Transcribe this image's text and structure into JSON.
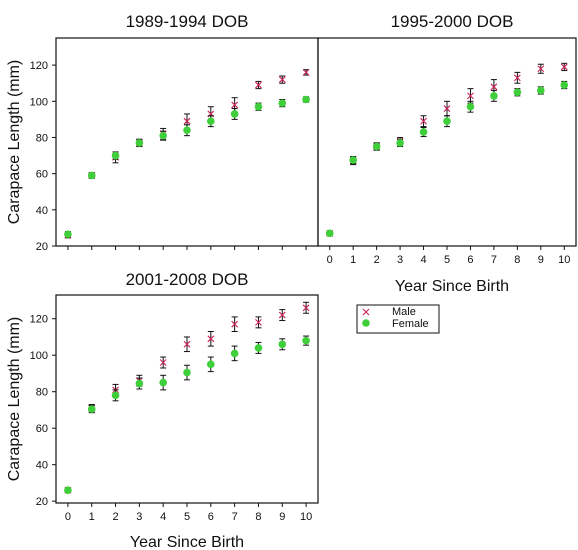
{
  "legend": {
    "male_label": "Male",
    "female_label": "Female",
    "male_marker": "x-marker",
    "female_marker": "circle-marker"
  },
  "colors": {
    "male": "#cc2a5a",
    "female": "#3fcf3a",
    "errorbar": "#111111",
    "axis": "#111111"
  },
  "chart_data": [
    {
      "type": "scatter",
      "title": "1989-1994 DOB",
      "xlabel": "",
      "ylabel": "Carapace Length (mm)",
      "xlim": [
        -0.5,
        10.5
      ],
      "ylim": [
        20,
        135
      ],
      "x_ticks": [
        0,
        1,
        2,
        3,
        4,
        5,
        6,
        7,
        8,
        9,
        10
      ],
      "x_tick_labels_shown": false,
      "y_ticks": [
        20,
        40,
        60,
        80,
        100,
        120
      ],
      "error_bars": true,
      "series": [
        {
          "name": "Male",
          "x": [
            0,
            1,
            2,
            3,
            4,
            5,
            6,
            7,
            8,
            9,
            10
          ],
          "y": [
            26,
            59,
            69,
            77,
            82,
            89,
            93,
            98,
            109,
            112,
            116
          ],
          "err": [
            1.5,
            1.5,
            3,
            2,
            3,
            4,
            4,
            4,
            2,
            2,
            1.5
          ]
        },
        {
          "name": "Female",
          "x": [
            0,
            1,
            2,
            3,
            4,
            5,
            6,
            7,
            8,
            9,
            10
          ],
          "y": [
            26.5,
            59,
            70,
            77,
            81,
            84,
            89,
            93,
            97,
            99,
            101
          ],
          "err": [
            1.5,
            1.5,
            2,
            2,
            2.5,
            3,
            3,
            3,
            2,
            2,
            1.5
          ]
        }
      ]
    },
    {
      "type": "scatter",
      "title": "1995-2000 DOB",
      "xlabel": "Year Since Birth",
      "ylabel": "",
      "xlim": [
        -0.5,
        10.5
      ],
      "ylim": [
        20,
        135
      ],
      "x_ticks": [
        0,
        1,
        2,
        3,
        4,
        5,
        6,
        7,
        8,
        9,
        10
      ],
      "x_tick_labels_shown": true,
      "y_ticks": [],
      "error_bars": true,
      "series": [
        {
          "name": "Male",
          "x": [
            0,
            1,
            2,
            3,
            4,
            5,
            6,
            7,
            8,
            9,
            10
          ],
          "y": [
            27,
            67,
            75,
            78,
            89,
            96,
            103,
            108,
            113,
            118,
            119
          ],
          "err": [
            1,
            2,
            2,
            2,
            3,
            4,
            4,
            4,
            3,
            2.5,
            2
          ]
        },
        {
          "name": "Female",
          "x": [
            0,
            1,
            2,
            3,
            4,
            5,
            6,
            7,
            8,
            9,
            10
          ],
          "y": [
            27,
            67.5,
            75,
            77,
            83,
            89,
            97,
            103,
            105,
            106,
            109
          ],
          "err": [
            1,
            2,
            2,
            2,
            2.5,
            3,
            3,
            3,
            2,
            2,
            2
          ]
        }
      ]
    },
    {
      "type": "scatter",
      "title": "2001-2008 DOB",
      "xlabel": "Year Since Birth",
      "ylabel": "Carapace Length (mm)",
      "xlim": [
        -0.5,
        10.5
      ],
      "ylim": [
        19,
        133
      ],
      "x_ticks": [
        0,
        1,
        2,
        3,
        4,
        5,
        6,
        7,
        8,
        9,
        10
      ],
      "x_tick_labels_shown": true,
      "y_ticks": [
        20,
        40,
        60,
        80,
        100,
        120
      ],
      "error_bars": true,
      "series": [
        {
          "name": "Male",
          "x": [
            0,
            1,
            2,
            3,
            4,
            5,
            6,
            7,
            8,
            9,
            10
          ],
          "y": [
            26,
            71,
            81,
            86,
            96,
            106,
            109,
            117,
            118,
            122,
            126
          ],
          "err": [
            1,
            2,
            3,
            3,
            3,
            4,
            4,
            4,
            3,
            3,
            3
          ]
        },
        {
          "name": "Female",
          "x": [
            0,
            1,
            2,
            3,
            4,
            5,
            6,
            7,
            8,
            9,
            10
          ],
          "y": [
            26,
            70.5,
            78,
            84.5,
            85,
            90.5,
            95,
            101,
            104,
            106,
            108
          ],
          "err": [
            1,
            2,
            3,
            3,
            4,
            4,
            4,
            4,
            3,
            3,
            2.5
          ]
        }
      ]
    }
  ]
}
